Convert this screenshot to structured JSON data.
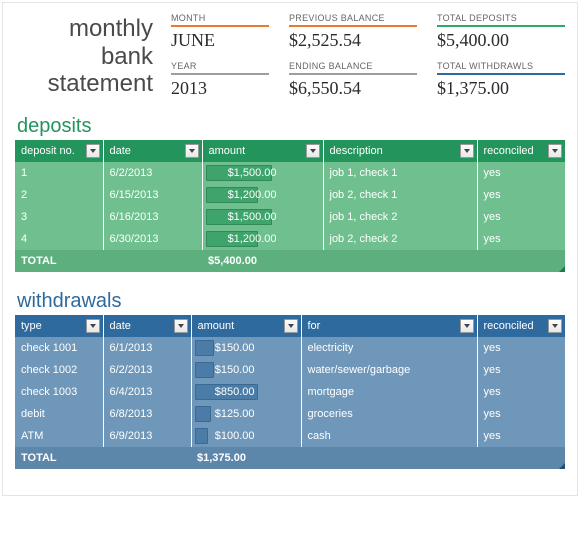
{
  "colors": {
    "accent_orange": "#e9792b",
    "accent_green": "#2fa96a",
    "accent_gray": "#9e9e9e",
    "accent_blue": "#2e6a9e",
    "deposits_header": "#24945d",
    "deposits_row": "#6fbf8f",
    "withdrawals_header": "#2e6a9e",
    "withdrawals_row": "#6f97b9"
  },
  "title": {
    "line1": "monthly",
    "line2": "bank",
    "line3": "statement"
  },
  "summary": {
    "month": {
      "label": "MONTH",
      "value": "JUNE",
      "underline": "#e9792b"
    },
    "previous_balance": {
      "label": "PREVIOUS BALANCE",
      "value": "$2,525.54",
      "underline": "#e9792b"
    },
    "total_deposits": {
      "label": "TOTAL DEPOSITS",
      "value": "$5,400.00",
      "underline": "#2fa96a"
    },
    "year": {
      "label": "YEAR",
      "value": "2013",
      "underline": "#9e9e9e"
    },
    "ending_balance": {
      "label": "ENDING BALANCE",
      "value": "$6,550.54",
      "underline": "#9e9e9e"
    },
    "total_withdrawals": {
      "label": "TOTAL WITHDRAWLS",
      "value": "$1,375.00",
      "underline": "#2e6a9e"
    }
  },
  "deposits": {
    "section_title": "deposits",
    "columns": [
      "deposit no.",
      "date",
      "amount",
      "description",
      "reconciled"
    ],
    "column_widths": [
      "16%",
      "18%",
      "22%",
      "28%",
      "16%"
    ],
    "rows": [
      {
        "no": "1",
        "date": "6/2/2013",
        "amount": "$1,500.00",
        "bar_pct": 55,
        "description": "job 1, check 1",
        "reconciled": "yes"
      },
      {
        "no": "2",
        "date": "6/15/2013",
        "amount": "$1,200.00",
        "bar_pct": 44,
        "description": "job 2, check 1",
        "reconciled": "yes"
      },
      {
        "no": "3",
        "date": "6/16/2013",
        "amount": "$1,500.00",
        "bar_pct": 55,
        "description": "job 1, check 2",
        "reconciled": "yes"
      },
      {
        "no": "4",
        "date": "6/30/2013",
        "amount": "$1,200.00",
        "bar_pct": 44,
        "description": "job 2, check 2",
        "reconciled": "yes"
      }
    ],
    "total": {
      "label": "TOTAL",
      "amount": "$5,400.00"
    }
  },
  "withdrawals": {
    "section_title": "withdrawals",
    "columns": [
      "type",
      "date",
      "amount",
      "for",
      "reconciled"
    ],
    "column_widths": [
      "16%",
      "16%",
      "20%",
      "32%",
      "16%"
    ],
    "rows": [
      {
        "type": "check 1001",
        "date": "6/1/2013",
        "amount": "$150.00",
        "bar_pct": 18,
        "for": "electricity",
        "reconciled": "yes"
      },
      {
        "type": "check 1002",
        "date": "6/2/2013",
        "amount": "$150.00",
        "bar_pct": 18,
        "for": "water/sewer/garbage",
        "reconciled": "yes"
      },
      {
        "type": "check 1003",
        "date": "6/4/2013",
        "amount": "$850.00",
        "bar_pct": 58,
        "for": "mortgage",
        "reconciled": "yes"
      },
      {
        "type": "debit",
        "date": "6/8/2013",
        "amount": "$125.00",
        "bar_pct": 15,
        "for": "groceries",
        "reconciled": "yes"
      },
      {
        "type": "ATM",
        "date": "6/9/2013",
        "amount": "$100.00",
        "bar_pct": 12,
        "for": "cash",
        "reconciled": "yes"
      }
    ],
    "total": {
      "label": "TOTAL",
      "amount": "$1,375.00"
    }
  }
}
